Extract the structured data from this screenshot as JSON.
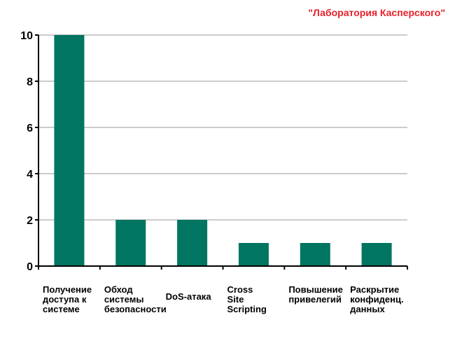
{
  "source_label": "\"Лаборатория Касперского\"",
  "colors": {
    "bar": "#007561",
    "grid": "#999999",
    "axis": "#000000",
    "source": "#e8202a"
  },
  "chart_data": {
    "type": "bar",
    "title": "",
    "xlabel": "",
    "ylabel": "",
    "ylim": [
      0,
      10
    ],
    "yticks": [
      "0",
      "2",
      "4",
      "6",
      "8",
      "10"
    ],
    "grid": true,
    "categories": [
      [
        "Получение",
        "доступа к",
        "системе"
      ],
      [
        "Обход",
        "системы",
        "безопасности"
      ],
      [
        "DoS-атака"
      ],
      [
        "Cross",
        "Site",
        "Scripting"
      ],
      [
        "Повышение",
        "привелегий"
      ],
      [
        "Раскрытие",
        "конфиденц.",
        "данных"
      ]
    ],
    "values": [
      10,
      2,
      2,
      1,
      1,
      1
    ]
  }
}
